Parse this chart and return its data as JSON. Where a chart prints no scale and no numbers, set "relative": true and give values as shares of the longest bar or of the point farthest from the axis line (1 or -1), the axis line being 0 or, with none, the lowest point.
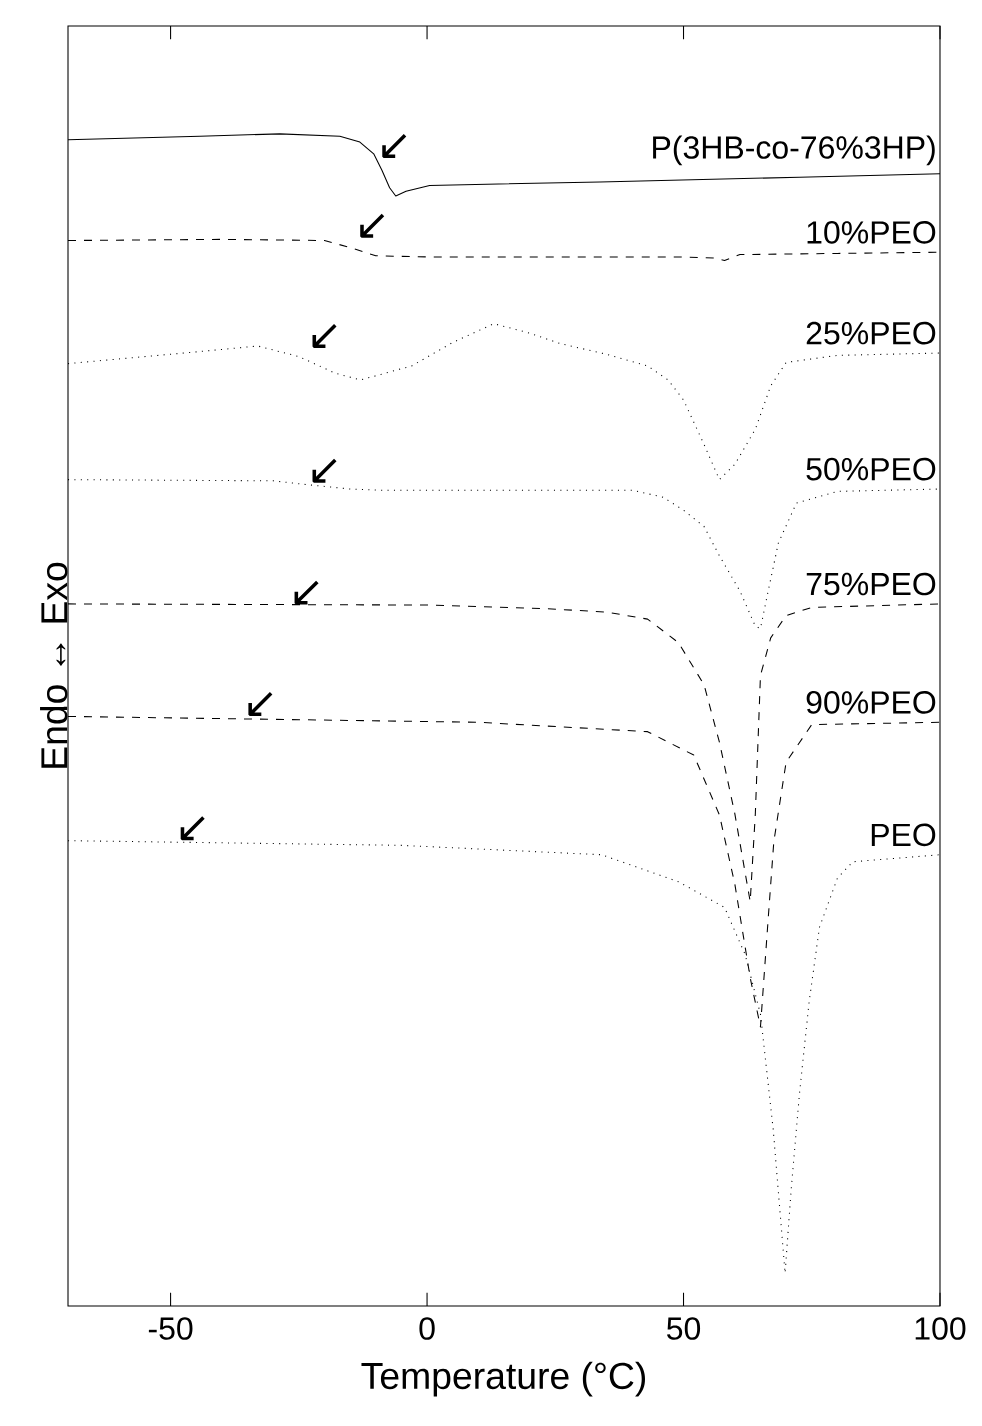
{
  "chart_data": {
    "type": "line",
    "relative": true,
    "xlabel": "Temperature (°C)",
    "ylabel": "Endo ↔ Exo",
    "xlim": [
      -70,
      100
    ],
    "xticks": [
      -50,
      0,
      50,
      100
    ],
    "series": [
      {
        "name": "P(3HB-co-76%3HP)",
        "color": "#000000",
        "line_style": "solid",
        "x": [
          -70,
          -44.3,
          -28.7,
          -17,
          -13.1,
          -10.4,
          -8.8,
          -7.3,
          -6.1,
          -4.1,
          0.5,
          33.7,
          72.6,
          100
        ],
        "values": [
          0.995,
          0.998,
          1.0,
          0.998,
          0.993,
          0.983,
          0.969,
          0.954,
          0.947,
          0.951,
          0.956,
          0.959,
          0.963,
          0.966
        ]
      },
      {
        "name": "10%PEO",
        "color": "#000000",
        "line_style": "dashed",
        "x": [
          -70,
          -40,
          -20,
          -15,
          -10,
          0,
          50,
          56,
          58,
          61,
          80,
          100
        ],
        "values": [
          0.909,
          0.91,
          0.909,
          0.903,
          0.896,
          0.895,
          0.895,
          0.894,
          0.892,
          0.897,
          0.898,
          0.899
        ]
      },
      {
        "name": "25%PEO",
        "color": "#000000",
        "line_style": "dotted",
        "x": [
          -70,
          -45,
          -33,
          -25,
          -18,
          -13,
          -3,
          5,
          13,
          20,
          26,
          35,
          43,
          47,
          50,
          54,
          57,
          60,
          64,
          67,
          70,
          80,
          100
        ],
        "values": [
          0.804,
          0.814,
          0.819,
          0.81,
          0.796,
          0.79,
          0.802,
          0.822,
          0.838,
          0.83,
          0.821,
          0.812,
          0.802,
          0.79,
          0.773,
          0.735,
          0.705,
          0.718,
          0.748,
          0.785,
          0.805,
          0.811,
          0.813
        ]
      },
      {
        "name": "50%PEO",
        "color": "#000000",
        "line_style": "dotted",
        "x": [
          -70,
          -30,
          -24,
          -15,
          -9,
          40,
          46,
          50,
          54,
          57,
          61,
          64,
          65,
          66.5,
          68.5,
          72,
          80,
          100
        ],
        "values": [
          0.705,
          0.704,
          0.701,
          0.697,
          0.696,
          0.696,
          0.69,
          0.679,
          0.665,
          0.64,
          0.61,
          0.58,
          0.578,
          0.61,
          0.651,
          0.685,
          0.695,
          0.697
        ]
      },
      {
        "name": "75%PEO",
        "color": "#000000",
        "line_style": "dashed",
        "x": [
          -70,
          0,
          23,
          35,
          43,
          49,
          54,
          57,
          60,
          62,
          63,
          64,
          65,
          67,
          70,
          75,
          100
        ],
        "values": [
          0.599,
          0.598,
          0.595,
          0.592,
          0.586,
          0.566,
          0.53,
          0.481,
          0.42,
          0.37,
          0.345,
          0.42,
          0.538,
          0.57,
          0.589,
          0.596,
          0.599
        ]
      },
      {
        "name": "90%PEO",
        "color": "#000000",
        "line_style": "dashed",
        "x": [
          -70,
          10,
          43,
          52,
          57,
          60,
          63,
          65,
          66.5,
          67.6,
          70,
          75,
          100
        ],
        "values": [
          0.503,
          0.498,
          0.49,
          0.47,
          0.419,
          0.36,
          0.28,
          0.238,
          0.33,
          0.396,
          0.464,
          0.496,
          0.498
        ]
      },
      {
        "name": "PEO",
        "color": "#000000",
        "line_style": "dotted",
        "x": [
          -70,
          -5,
          34,
          49,
          58,
          62,
          65,
          67.5,
          69.8,
          71,
          72.6,
          74.5,
          76.5,
          80,
          83,
          100
        ],
        "values": [
          0.397,
          0.393,
          0.385,
          0.362,
          0.34,
          0.3,
          0.249,
          0.15,
          0.028,
          0.1,
          0.181,
          0.26,
          0.323,
          0.365,
          0.379,
          0.385
        ]
      }
    ],
    "annotations": [
      {
        "text": "↙",
        "x": -10.0,
        "y": 0.978
      },
      {
        "text": "↙",
        "x": -14.3,
        "y": 0.91
      },
      {
        "text": "↙",
        "x": -23.6,
        "y": 0.816
      },
      {
        "text": "↙",
        "x": -23.6,
        "y": 0.701
      },
      {
        "text": "↙",
        "x": -27.1,
        "y": 0.597
      },
      {
        "text": "↙",
        "x": -36.1,
        "y": 0.502
      },
      {
        "text": "↙",
        "x": -49.3,
        "y": 0.396
      }
    ]
  }
}
